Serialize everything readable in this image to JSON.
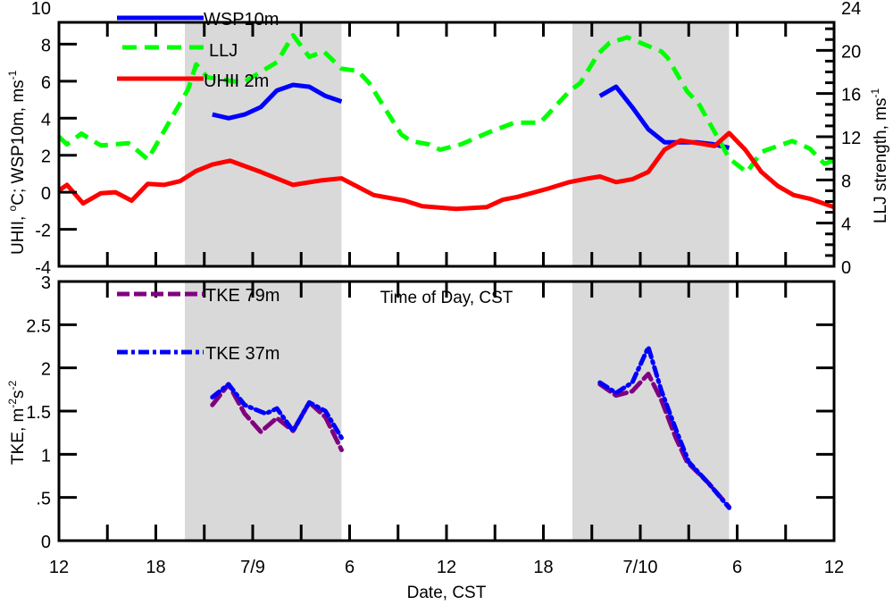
{
  "chart_data": [
    {
      "panel": "top",
      "type": "line",
      "x_unit": "hours since 12 CST 7/8",
      "xlim": [
        0,
        48
      ],
      "x_tick_hours": [
        0,
        6,
        12,
        18,
        24,
        30,
        36,
        42,
        48
      ],
      "x_tick_labels": [
        "12",
        "18",
        "7/9",
        "6",
        "12",
        "18",
        "7/10",
        "6",
        "12"
      ],
      "x_minor_tick_step_hours": 3,
      "ylabel": "UHII, °C; WSP10m, ms",
      "ylabel_parts": {
        "a": "UHII, ",
        "deg": "o",
        "b": "C; WSP10m, ms",
        "exp": "-1"
      },
      "ylim": [
        -4,
        10
      ],
      "y_ticks": [
        -4,
        -2,
        0,
        2,
        4,
        6,
        8,
        10
      ],
      "y_tick_labels": [
        "-4",
        "-2",
        "0",
        "2",
        "4",
        "6",
        "8",
        "10"
      ],
      "y2label": "LLJ strength, ms",
      "y2label_exp": "-1",
      "y2lim": [
        0,
        24
      ],
      "y2_ticks": [
        0,
        4,
        8,
        12,
        16,
        20,
        24
      ],
      "y2_tick_labels": [
        "0",
        "4",
        "8",
        "12",
        "16",
        "20",
        "24"
      ],
      "y2_minor_tick_step": 1,
      "shaded_periods_hours": [
        [
          7.8,
          17.5
        ],
        [
          31.8,
          41.5
        ]
      ],
      "shade_color": "#d9d9d9",
      "series": [
        {
          "name": "WSP10m",
          "axis": "left",
          "color": "#0000ff",
          "style": "solid",
          "segments": [
            [
              [
                9.5,
                4.2
              ],
              [
                10.5,
                4.0
              ],
              [
                11.5,
                4.2
              ],
              [
                12.5,
                4.6
              ],
              [
                13.5,
                5.5
              ],
              [
                14.5,
                5.8
              ],
              [
                15.5,
                5.7
              ],
              [
                16.5,
                5.2
              ],
              [
                17.5,
                4.9
              ]
            ],
            [
              [
                33.5,
                5.2
              ],
              [
                34.5,
                5.7
              ],
              [
                35.5,
                4.6
              ],
              [
                36.5,
                3.4
              ],
              [
                37.5,
                2.7
              ],
              [
                38.5,
                2.7
              ],
              [
                39.5,
                2.7
              ],
              [
                40.5,
                2.6
              ],
              [
                41.5,
                2.4
              ]
            ]
          ]
        },
        {
          "name": "LLJ",
          "axis": "right",
          "color": "#00ff00",
          "style": "dashed",
          "segments": [
            [
              [
                0,
                12.0
              ],
              [
                0.5,
                11.3
              ],
              [
                1.4,
                12.3
              ],
              [
                2.0,
                11.7
              ],
              [
                2.6,
                11.2
              ],
              [
                4.3,
                11.4
              ],
              [
                4.8,
                10.8
              ],
              [
                5.5,
                9.9
              ],
              [
                8.0,
                16.4
              ],
              [
                8.5,
                18.7
              ],
              [
                9.2,
                17.5
              ],
              [
                11.4,
                17.0
              ],
              [
                13.5,
                18.9
              ],
              [
                14.5,
                21.4
              ],
              [
                15.5,
                19.4
              ],
              [
                16.4,
                19.9
              ],
              [
                17.5,
                18.3
              ],
              [
                18.5,
                18.1
              ],
              [
                19.2,
                17.0
              ],
              [
                21.2,
                12.2
              ],
              [
                21.8,
                11.6
              ],
              [
                22.9,
                11.3
              ],
              [
                23.6,
                10.8
              ],
              [
                24.9,
                11.3
              ],
              [
                26.6,
                12.4
              ],
              [
                28.2,
                13.3
              ],
              [
                29.8,
                13.3
              ],
              [
                31.6,
                16.2
              ],
              [
                32.3,
                17.0
              ],
              [
                33.4,
                19.7
              ],
              [
                34.1,
                20.7
              ],
              [
                35.2,
                21.2
              ],
              [
                37.3,
                19.9
              ],
              [
                37.7,
                19.3
              ],
              [
                38.9,
                16.2
              ],
              [
                39.6,
                15.1
              ],
              [
                41.0,
                11.4
              ],
              [
                41.5,
                10.0
              ],
              [
                42.6,
                8.7
              ],
              [
                43.5,
                10.6
              ],
              [
                45.4,
                11.6
              ],
              [
                46.5,
                10.9
              ],
              [
                47.4,
                9.5
              ],
              [
                48,
                9.8
              ]
            ]
          ]
        },
        {
          "name": "UHII 2m",
          "axis": "left",
          "color": "#ff0000",
          "style": "solid",
          "segments": [
            [
              [
                0,
                0.1
              ],
              [
                0.5,
                0.4
              ],
              [
                1.5,
                -0.6
              ],
              [
                2.6,
                -0.05
              ],
              [
                3.5,
                0.0
              ],
              [
                4.5,
                -0.45
              ],
              [
                5.5,
                0.45
              ],
              [
                6.5,
                0.4
              ],
              [
                7.5,
                0.6
              ],
              [
                8.5,
                1.15
              ],
              [
                9.5,
                1.5
              ],
              [
                10.6,
                1.7
              ],
              [
                12.5,
                1.1
              ],
              [
                14.5,
                0.4
              ],
              [
                16.3,
                0.65
              ],
              [
                17.5,
                0.75
              ],
              [
                19.5,
                -0.15
              ],
              [
                21.4,
                -0.45
              ],
              [
                22.5,
                -0.75
              ],
              [
                24.6,
                -0.9
              ],
              [
                26.5,
                -0.8
              ],
              [
                27.5,
                -0.4
              ],
              [
                28.4,
                -0.25
              ],
              [
                30.3,
                0.2
              ],
              [
                31.6,
                0.55
              ],
              [
                32.8,
                0.75
              ],
              [
                33.5,
                0.85
              ],
              [
                34.5,
                0.55
              ],
              [
                35.5,
                0.7
              ],
              [
                36.5,
                1.1
              ],
              [
                37.5,
                2.3
              ],
              [
                38.5,
                2.8
              ],
              [
                39.6,
                2.65
              ],
              [
                40.6,
                2.5
              ],
              [
                41.5,
                3.2
              ],
              [
                42.5,
                2.3
              ],
              [
                43.5,
                1.1
              ],
              [
                44.5,
                0.35
              ],
              [
                45.5,
                -0.15
              ],
              [
                46.5,
                -0.35
              ],
              [
                48,
                -0.8
              ]
            ]
          ]
        }
      ],
      "legend": {
        "placement": "top-left",
        "entries": [
          "WSP10m",
          "LLJ",
          "UHII 2m"
        ]
      }
    },
    {
      "panel": "bottom",
      "type": "line",
      "title": "Time of Day, CST",
      "xlabel": "Date, CST",
      "xlim": [
        0,
        48
      ],
      "ylabel": "TKE, m",
      "ylabel_parts": {
        "a": "TKE, m",
        "exp1": "-2",
        "b": "s",
        "exp2": "-2"
      },
      "ylim": [
        0,
        3
      ],
      "y_ticks": [
        0,
        0.5,
        1,
        1.5,
        2,
        2.5,
        3
      ],
      "y_tick_labels": [
        "0",
        ".5",
        "1",
        "1.5",
        "2",
        "2.5",
        "3"
      ],
      "series": [
        {
          "name": "TKE 79m",
          "color": "#800080",
          "style": "dashed",
          "segments": [
            [
              [
                9.5,
                1.57
              ],
              [
                10.5,
                1.81
              ],
              [
                11.5,
                1.47
              ],
              [
                12.5,
                1.26
              ],
              [
                13.5,
                1.42
              ],
              [
                14.5,
                1.27
              ],
              [
                15.5,
                1.6
              ],
              [
                16.5,
                1.43
              ],
              [
                17.5,
                1.05
              ]
            ],
            [
              [
                33.5,
                1.81
              ],
              [
                34.5,
                1.68
              ],
              [
                35.5,
                1.73
              ],
              [
                36.5,
                1.93
              ],
              [
                37.3,
                1.63
              ],
              [
                38.2,
                1.19
              ],
              [
                38.9,
                0.91
              ],
              [
                40.2,
                0.67
              ],
              [
                41.5,
                0.39
              ]
            ]
          ]
        },
        {
          "name": "TKE 37m",
          "color": "#0000ff",
          "style": "dashdot",
          "segments": [
            [
              [
                9.5,
                1.66
              ],
              [
                10.5,
                1.81
              ],
              [
                11.5,
                1.57
              ],
              [
                12.8,
                1.47
              ],
              [
                13.5,
                1.53
              ],
              [
                14.5,
                1.27
              ],
              [
                15.5,
                1.6
              ],
              [
                16.5,
                1.5
              ],
              [
                17.5,
                1.19
              ]
            ],
            [
              [
                33.5,
                1.83
              ],
              [
                34.5,
                1.71
              ],
              [
                35.5,
                1.83
              ],
              [
                36.5,
                2.24
              ],
              [
                37.3,
                1.74
              ],
              [
                38.2,
                1.29
              ],
              [
                39.0,
                0.91
              ],
              [
                40.2,
                0.67
              ],
              [
                41.5,
                0.38
              ]
            ]
          ]
        }
      ],
      "legend": {
        "placement": "top-left",
        "entries": [
          "TKE 79m",
          "TKE 37m"
        ]
      }
    }
  ]
}
